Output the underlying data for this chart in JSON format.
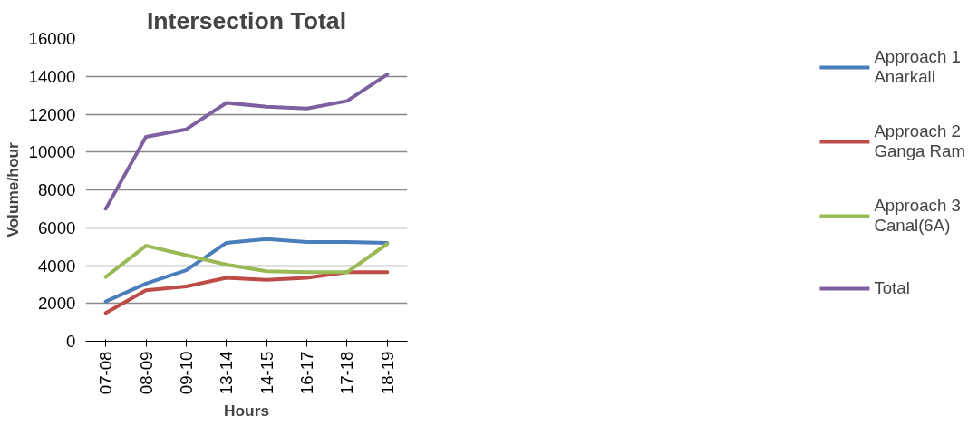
{
  "chart_data": {
    "type": "line",
    "title": "Intersection Total",
    "xlabel": "Hours",
    "ylabel": "Volume/hour",
    "categories": [
      "07-08",
      "08-09",
      "09-10",
      "13-14",
      "14-15",
      "16-17",
      "17-18",
      "18-19"
    ],
    "series": [
      {
        "name": "Approach 1\nAnarkali",
        "color": "#4a7ebb",
        "values": [
          2100,
          3050,
          3750,
          5200,
          5400,
          5250,
          5250,
          5200
        ]
      },
      {
        "name": "Approach 2\nGanga Ram",
        "color": "#be4b48",
        "values": [
          1500,
          2700,
          2900,
          3350,
          3250,
          3350,
          3650,
          3650
        ]
      },
      {
        "name": "Approach 3\nCanal(6A)",
        "color": "#98b954",
        "values": [
          3400,
          5050,
          4550,
          4050,
          3700,
          3650,
          3650,
          5150
        ]
      },
      {
        "name": "Total",
        "color": "#7d60a0",
        "values": [
          7000,
          10800,
          11200,
          12600,
          12400,
          12300,
          12700,
          14100
        ]
      }
    ],
    "ylim": [
      0,
      16000
    ],
    "yticks": [
      0,
      2000,
      4000,
      6000,
      8000,
      10000,
      12000,
      14000,
      16000
    ],
    "grid": "y",
    "legend": "right",
    "marker": "none",
    "line_style": "solid"
  }
}
